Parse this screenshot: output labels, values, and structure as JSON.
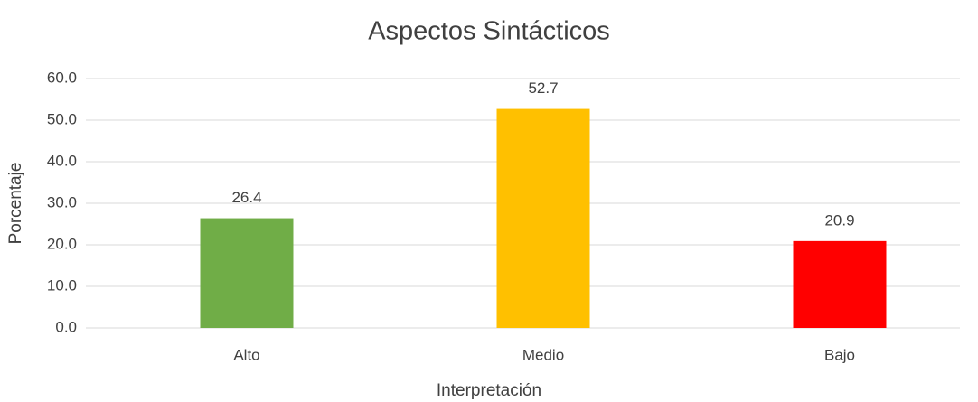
{
  "chart_data": {
    "type": "bar",
    "title": "Aspectos Sintácticos",
    "x_label": "Interpretación",
    "y_label": "Porcentaje",
    "categories": [
      "Alto",
      "Medio",
      "Bajo"
    ],
    "values": [
      26.4,
      52.7,
      20.9
    ],
    "colors": [
      "#70ad47",
      "#ffc000",
      "#ff0000"
    ],
    "ylim": [
      0,
      60
    ],
    "yticks": [
      {
        "value": 0,
        "label": "0.0"
      },
      {
        "value": 10,
        "label": "10.0"
      },
      {
        "value": 20,
        "label": "20.0"
      },
      {
        "value": 30,
        "label": "30.0"
      },
      {
        "value": 40,
        "label": "40.0"
      },
      {
        "value": 50,
        "label": "50.0"
      },
      {
        "value": 60,
        "label": "60.0"
      }
    ],
    "grid": true
  }
}
